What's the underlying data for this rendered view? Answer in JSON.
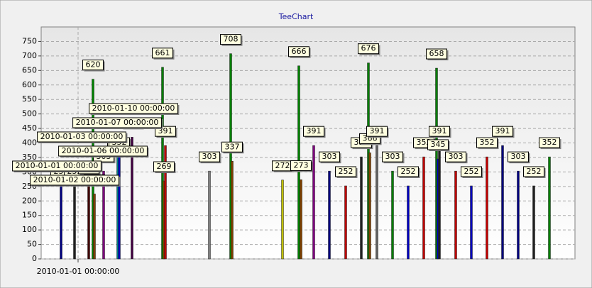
{
  "chart_data": {
    "type": "bar",
    "title": "TeeChart",
    "x": [
      -24,
      -5,
      15,
      21,
      23,
      36,
      56,
      58,
      76,
      119,
      121,
      123,
      185,
      215,
      217,
      288,
      311,
      314,
      332,
      354,
      377,
      399,
      409,
      411,
      421,
      443,
      465,
      487,
      505,
      507,
      509,
      532,
      554,
      576,
      598,
      620,
      642,
      664
    ],
    "values": [
      252,
      252,
      262,
      620,
      224,
      303,
      352,
      352,
      420,
      661,
      269,
      391,
      303,
      708,
      337,
      272,
      666,
      273,
      391,
      303,
      252,
      352,
      676,
      366,
      391,
      303,
      252,
      352,
      658,
      345,
      391,
      303,
      252,
      352,
      391,
      303,
      252,
      352
    ],
    "colors": [
      "#000080",
      "#202020",
      "#400000",
      "#008000",
      "#804000",
      "#800080",
      "#008080",
      "#0000c0",
      "#400040",
      "#008000",
      "#804000",
      "#c00000",
      "#808080",
      "#008000",
      "#804000",
      "#c0c000",
      "#008000",
      "#804000",
      "#800080",
      "#000080",
      "#c00000",
      "#202020",
      "#008000",
      "#804000",
      "#606060",
      "#008000",
      "#0000c0",
      "#c00000",
      "#008000",
      "#0000c0",
      "#202020",
      "#c00000",
      "#0000c0",
      "#c00000",
      "#000080",
      "#000080",
      "#202020",
      "#008000"
    ],
    "annotations": [
      "2010-01-10 00:00:00",
      "2010-01-07 00:00:00",
      "2010-01-03 00:00:00",
      "2010-01-06 00:00:00",
      "2010-01-01 00:00:00",
      "2010-01-02 00:00:00"
    ],
    "xlim": [
      -52,
      700
    ],
    "xticks": [
      {
        "value": 0,
        "label": "2010-01-01 00:00:00"
      }
    ],
    "ylim": [
      0,
      800
    ],
    "yticks": [
      0,
      50,
      100,
      150,
      200,
      250,
      300,
      350,
      400,
      450,
      500,
      550,
      600,
      650,
      700,
      750
    ],
    "grid": true
  }
}
